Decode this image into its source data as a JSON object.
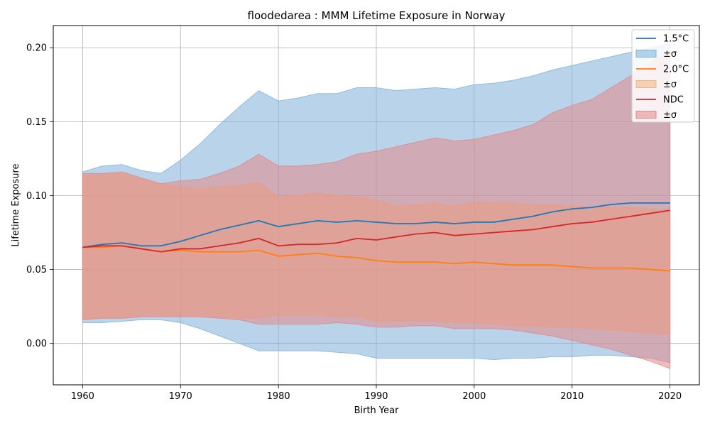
{
  "chart_data": {
    "type": "line",
    "title": "floodedarea : MMM Lifetime Exposure in Norway",
    "xlabel": "Birth Year",
    "ylabel": "Lifetime Exposure",
    "xlim": [
      1957,
      2023
    ],
    "ylim": [
      -0.028,
      0.215
    ],
    "xticks": [
      1960,
      1970,
      1980,
      1990,
      2000,
      2010,
      2020
    ],
    "xtick_labels": [
      "1960",
      "1970",
      "1980",
      "1990",
      "2000",
      "2010",
      "2020"
    ],
    "yticks": [
      0.0,
      0.05,
      0.1,
      0.15,
      0.2
    ],
    "ytick_labels": [
      "0.00",
      "0.05",
      "0.10",
      "0.15",
      "0.20"
    ],
    "grid": true,
    "legend_position": "top-right",
    "legend": [
      "1.5°C",
      "±σ",
      "2.0°C",
      "±σ",
      "NDC",
      "±σ"
    ],
    "x": [
      1960,
      1962,
      1964,
      1966,
      1968,
      1970,
      1972,
      1974,
      1976,
      1978,
      1980,
      1982,
      1984,
      1986,
      1988,
      1990,
      1992,
      1994,
      1996,
      1998,
      2000,
      2002,
      2004,
      2006,
      2008,
      2010,
      2012,
      2014,
      2016,
      2018,
      2020
    ],
    "series": [
      {
        "name": "1.5°C",
        "color": "#1f77b4",
        "band_color": "#7fb1d8",
        "mean": [
          0.065,
          0.067,
          0.068,
          0.066,
          0.066,
          0.069,
          0.073,
          0.077,
          0.08,
          0.083,
          0.079,
          0.081,
          0.083,
          0.082,
          0.083,
          0.082,
          0.081,
          0.081,
          0.082,
          0.081,
          0.082,
          0.082,
          0.084,
          0.086,
          0.089,
          0.091,
          0.092,
          0.094,
          0.095,
          0.095,
          0.095
        ],
        "upper": [
          0.116,
          0.12,
          0.121,
          0.117,
          0.115,
          0.124,
          0.135,
          0.148,
          0.16,
          0.171,
          0.164,
          0.166,
          0.169,
          0.169,
          0.173,
          0.173,
          0.171,
          0.172,
          0.173,
          0.172,
          0.175,
          0.176,
          0.178,
          0.181,
          0.185,
          0.188,
          0.191,
          0.194,
          0.197,
          0.2,
          0.203
        ],
        "lower": [
          0.014,
          0.014,
          0.015,
          0.016,
          0.016,
          0.014,
          0.01,
          0.005,
          0.0,
          -0.005,
          -0.005,
          -0.005,
          -0.005,
          -0.006,
          -0.007,
          -0.01,
          -0.01,
          -0.01,
          -0.01,
          -0.01,
          -0.01,
          -0.011,
          -0.01,
          -0.01,
          -0.009,
          -0.009,
          -0.008,
          -0.008,
          -0.009,
          -0.01,
          -0.013
        ]
      },
      {
        "name": "2.0°C",
        "color": "#ff7f0e",
        "band_color": "#f5b47f",
        "mean": [
          0.065,
          0.065,
          0.066,
          0.064,
          0.062,
          0.063,
          0.062,
          0.062,
          0.062,
          0.063,
          0.059,
          0.06,
          0.061,
          0.059,
          0.058,
          0.056,
          0.055,
          0.055,
          0.055,
          0.054,
          0.055,
          0.054,
          0.053,
          0.053,
          0.053,
          0.052,
          0.051,
          0.051,
          0.051,
          0.05,
          0.049
        ],
        "upper": [
          0.114,
          0.114,
          0.115,
          0.111,
          0.108,
          0.106,
          0.105,
          0.106,
          0.107,
          0.109,
          0.099,
          0.1,
          0.102,
          0.1,
          0.099,
          0.097,
          0.093,
          0.094,
          0.095,
          0.093,
          0.096,
          0.095,
          0.095,
          0.094,
          0.094,
          0.093,
          0.092,
          0.092,
          0.092,
          0.091,
          0.09
        ],
        "lower": [
          0.016,
          0.017,
          0.017,
          0.018,
          0.019,
          0.019,
          0.018,
          0.018,
          0.017,
          0.017,
          0.019,
          0.019,
          0.019,
          0.018,
          0.018,
          0.015,
          0.015,
          0.015,
          0.015,
          0.014,
          0.014,
          0.013,
          0.012,
          0.012,
          0.011,
          0.011,
          0.01,
          0.009,
          0.008,
          0.007,
          0.006
        ]
      },
      {
        "name": "NDC",
        "color": "#d62728",
        "band_color": "#e48687",
        "mean": [
          0.065,
          0.066,
          0.066,
          0.064,
          0.062,
          0.064,
          0.064,
          0.066,
          0.068,
          0.071,
          0.066,
          0.067,
          0.067,
          0.068,
          0.071,
          0.07,
          0.072,
          0.074,
          0.075,
          0.073,
          0.074,
          0.075,
          0.076,
          0.077,
          0.079,
          0.081,
          0.082,
          0.084,
          0.086,
          0.088,
          0.09
        ],
        "upper": [
          0.115,
          0.115,
          0.116,
          0.112,
          0.108,
          0.11,
          0.111,
          0.115,
          0.12,
          0.128,
          0.12,
          0.12,
          0.121,
          0.123,
          0.128,
          0.13,
          0.133,
          0.136,
          0.139,
          0.137,
          0.138,
          0.141,
          0.144,
          0.148,
          0.156,
          0.161,
          0.165,
          0.173,
          0.181,
          0.19,
          0.198
        ],
        "lower": [
          0.016,
          0.017,
          0.017,
          0.018,
          0.018,
          0.018,
          0.018,
          0.017,
          0.016,
          0.013,
          0.013,
          0.013,
          0.013,
          0.014,
          0.013,
          0.011,
          0.011,
          0.012,
          0.012,
          0.01,
          0.01,
          0.01,
          0.009,
          0.007,
          0.005,
          0.002,
          -0.001,
          -0.004,
          -0.008,
          -0.012,
          -0.017
        ]
      }
    ]
  }
}
